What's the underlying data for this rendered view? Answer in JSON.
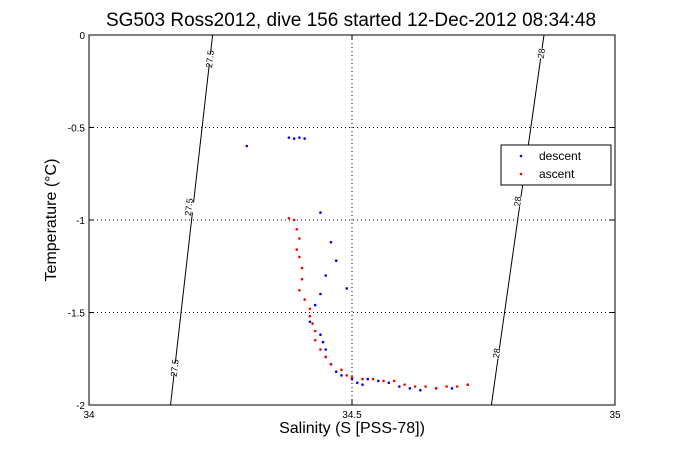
{
  "chart_data": {
    "type": "scatter",
    "title": "SG503 Ross2012, dive 156 started 12-Dec-2012 08:34:48",
    "xlabel": "Salinity (S [PSS-78])",
    "ylabel": "Temperature (°C)",
    "xlim": [
      34,
      35
    ],
    "ylim": [
      -2,
      0
    ],
    "xticks": [
      34,
      34.5,
      35
    ],
    "xtick_labels": [
      "34",
      "34.5",
      "35"
    ],
    "yticks": [
      0,
      -0.5,
      -1,
      -1.5,
      -2
    ],
    "ytick_labels": [
      "0",
      "-0.5",
      "-1",
      "-1.5",
      "-2"
    ],
    "grid": "dotted",
    "legend": {
      "placement": "right"
    },
    "colors": {
      "descent": "#0000ff",
      "ascent": "#ff0000",
      "axes": "#000000"
    },
    "contours": [
      {
        "label": "27.5",
        "x_at_top": 34.235,
        "x_at_bottom": 34.155,
        "label_positions": [
          [
            34.23,
            -0.13
          ],
          [
            34.19,
            -0.93
          ],
          [
            34.163,
            -1.8
          ]
        ]
      },
      {
        "label": "28",
        "x_at_top": 34.865,
        "x_at_bottom": 34.765,
        "label_positions": [
          [
            34.86,
            -0.1
          ],
          [
            34.815,
            -0.9
          ],
          [
            34.775,
            -1.72
          ]
        ]
      }
    ],
    "series": [
      {
        "name": "descent",
        "points": [
          [
            34.3,
            -0.6
          ],
          [
            34.38,
            -0.555
          ],
          [
            34.39,
            -0.56
          ],
          [
            34.4,
            -0.555
          ],
          [
            34.41,
            -0.56
          ],
          [
            34.44,
            -0.96
          ],
          [
            34.46,
            -1.12
          ],
          [
            34.47,
            -1.22
          ],
          [
            34.45,
            -1.3
          ],
          [
            34.49,
            -1.37
          ],
          [
            34.44,
            -1.4
          ],
          [
            34.43,
            -1.46
          ],
          [
            34.42,
            -1.55
          ],
          [
            34.44,
            -1.62
          ],
          [
            34.445,
            -1.66
          ],
          [
            34.45,
            -1.7
          ],
          [
            34.45,
            -1.74
          ],
          [
            34.46,
            -1.78
          ],
          [
            34.47,
            -1.82
          ],
          [
            34.48,
            -1.84
          ],
          [
            34.5,
            -1.86
          ],
          [
            34.51,
            -1.88
          ],
          [
            34.52,
            -1.89
          ],
          [
            34.53,
            -1.86
          ],
          [
            34.55,
            -1.87
          ],
          [
            34.57,
            -1.88
          ],
          [
            34.59,
            -1.9
          ],
          [
            34.61,
            -1.91
          ],
          [
            34.63,
            -1.92
          ],
          [
            34.66,
            -1.91
          ],
          [
            34.69,
            -1.91
          ],
          [
            34.72,
            -1.89
          ]
        ]
      },
      {
        "name": "ascent",
        "points": [
          [
            34.38,
            -0.99
          ],
          [
            34.39,
            -1.0
          ],
          [
            34.395,
            -1.05
          ],
          [
            34.4,
            -1.1
          ],
          [
            34.395,
            -1.16
          ],
          [
            34.4,
            -1.2
          ],
          [
            34.405,
            -1.26
          ],
          [
            34.405,
            -1.32
          ],
          [
            34.4,
            -1.38
          ],
          [
            34.41,
            -1.43
          ],
          [
            34.42,
            -1.48
          ],
          [
            34.42,
            -1.52
          ],
          [
            34.425,
            -1.56
          ],
          [
            34.43,
            -1.6
          ],
          [
            34.43,
            -1.65
          ],
          [
            34.44,
            -1.7
          ],
          [
            34.45,
            -1.74
          ],
          [
            34.46,
            -1.78
          ],
          [
            34.48,
            -1.81
          ],
          [
            34.49,
            -1.84
          ],
          [
            34.5,
            -1.85
          ],
          [
            34.52,
            -1.86
          ],
          [
            34.54,
            -1.86
          ],
          [
            34.56,
            -1.87
          ],
          [
            34.58,
            -1.87
          ],
          [
            34.6,
            -1.89
          ],
          [
            34.62,
            -1.9
          ],
          [
            34.64,
            -1.9
          ],
          [
            34.66,
            -1.91
          ],
          [
            34.68,
            -1.9
          ],
          [
            34.7,
            -1.9
          ],
          [
            34.72,
            -1.89
          ]
        ]
      }
    ]
  }
}
